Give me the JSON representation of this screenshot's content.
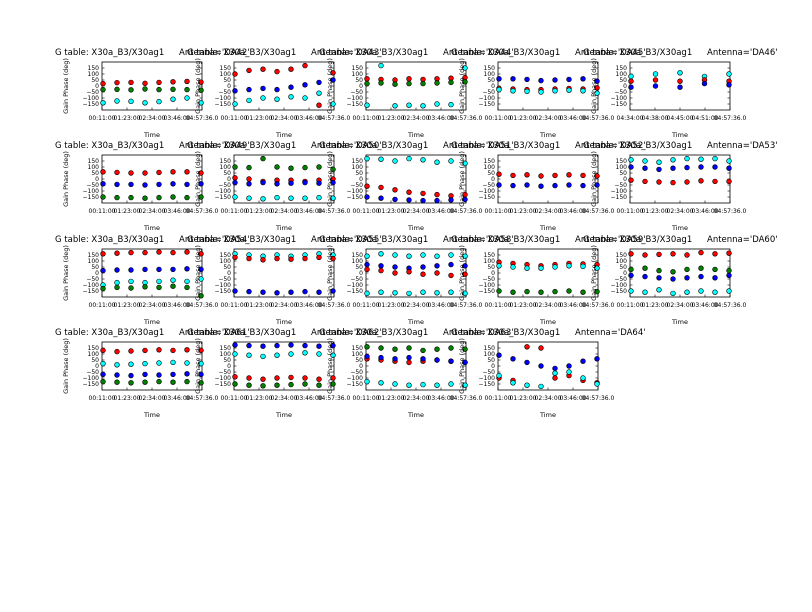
{
  "chart_data": {
    "type": "scatter",
    "ylabel": "Gain Phase (deg)",
    "xlabel": "Time",
    "title_prefix": "G table: X30a_B3/X30ag1",
    "ylim": [
      -200,
      200
    ],
    "yticks": [
      "150",
      "100",
      "50",
      "0",
      "−50",
      "−100",
      "−150"
    ],
    "xticks": [
      "00:11:00",
      "01:23:00",
      "02:34:00",
      "03:46:00",
      "04:57:36.0"
    ],
    "xticks_alt": [
      "04:34:00",
      "04:38:00",
      "04:45:00",
      "04:51:00",
      "04:57:36.0"
    ],
    "series_colors": {
      "red": "#ff0000",
      "blue": "#0000ff",
      "green": "#008000",
      "cyan": "#00ffff"
    },
    "panels": [
      {
        "antenna": "Antenna='DA42'",
        "series": [
          {
            "color": "red",
            "y": [
              20,
              28,
              30,
              22,
              30,
              35,
              38,
              32
            ]
          },
          {
            "color": "green",
            "y": [
              -30,
              -28,
              -32,
              -25,
              -30,
              -28,
              -30,
              -35
            ]
          },
          {
            "color": "cyan",
            "y": [
              -140,
              -125,
              -128,
              -140,
              -130,
              -110,
              -100,
              -140
            ]
          }
        ]
      },
      {
        "antenna": "Antenna='DA43'",
        "series": [
          {
            "color": "red",
            "y": [
              100,
              130,
              140,
              120,
              140,
              170,
              -160,
              110
            ]
          },
          {
            "color": "blue",
            "y": [
              -40,
              -30,
              -20,
              -30,
              -10,
              10,
              30,
              50
            ]
          },
          {
            "color": "cyan",
            "y": [
              -150,
              -120,
              -100,
              -110,
              -90,
              -100,
              -60,
              -150
            ]
          }
        ]
      },
      {
        "antenna": "Antenna='DA44'",
        "series": [
          {
            "color": "red",
            "y": [
              60,
              55,
              50,
              60,
              55,
              60,
              65,
              70
            ]
          },
          {
            "color": "green",
            "y": [
              20,
              25,
              15,
              20,
              20,
              25,
              30,
              35
            ]
          },
          {
            "color": "cyan",
            "y": [
              -160,
              170,
              -165,
              -160,
              -165,
              -150,
              -155,
              150
            ]
          }
        ]
      },
      {
        "antenna": "Antenna='DA45'",
        "series": [
          {
            "color": "blue",
            "y": [
              60,
              60,
              55,
              45,
              50,
              55,
              60,
              40
            ]
          },
          {
            "color": "red",
            "y": [
              -20,
              -25,
              -30,
              -30,
              -25,
              -20,
              -25,
              -15
            ]
          },
          {
            "color": "cyan",
            "y": [
              -30,
              -40,
              -45,
              -50,
              -40,
              -35,
              -40,
              -60
            ]
          }
        ]
      },
      {
        "antenna": "Antenna='DA46'",
        "series": [
          {
            "color": "cyan",
            "y": [
              80,
              100,
              110,
              80,
              100
            ]
          },
          {
            "color": "red",
            "y": [
              40,
              50,
              40,
              50,
              40
            ]
          },
          {
            "color": "blue",
            "y": [
              -10,
              0,
              -10,
              20,
              10
            ]
          }
        ]
      },
      {
        "antenna": "Antenna='DA49'",
        "series": [
          {
            "color": "red",
            "y": [
              60,
              55,
              50,
              50,
              55,
              60,
              60,
              50
            ]
          },
          {
            "color": "blue",
            "y": [
              -40,
              -45,
              -45,
              -50,
              -45,
              -40,
              -45,
              -40
            ]
          },
          {
            "color": "green",
            "y": [
              -150,
              -155,
              -155,
              -160,
              -155,
              -150,
              -155,
              -150
            ]
          }
        ]
      },
      {
        "antenna": "Antenna='DA50'",
        "series": [
          {
            "color": "green",
            "y": [
              100,
              95,
              170,
              100,
              90,
              95,
              100,
              80
            ]
          },
          {
            "color": "red",
            "y": [
              10,
              0,
              -20,
              -10,
              -10,
              -20,
              -10,
              0
            ]
          },
          {
            "color": "blue",
            "y": [
              -30,
              -40,
              -30,
              -40,
              -35,
              -30,
              -35,
              -30
            ]
          },
          {
            "color": "cyan",
            "y": [
              -150,
              -160,
              -165,
              -155,
              -160,
              -160,
              -155,
              -160
            ]
          }
        ]
      },
      {
        "antenna": "Antenna='DA51'",
        "series": [
          {
            "color": "cyan",
            "y": [
              170,
              165,
              150,
              170,
              160,
              140,
              150,
              130
            ]
          },
          {
            "color": "red",
            "y": [
              -60,
              -70,
              -90,
              -110,
              -120,
              -130,
              -140,
              -130
            ]
          },
          {
            "color": "blue",
            "y": [
              -150,
              -160,
              -170,
              -175,
              -180,
              -180,
              -175,
              -170
            ]
          }
        ]
      },
      {
        "antenna": "Antenna='DA52'",
        "series": [
          {
            "color": "red",
            "y": [
              40,
              30,
              35,
              25,
              30,
              35,
              30,
              25
            ]
          },
          {
            "color": "blue",
            "y": [
              -50,
              -55,
              -50,
              -60,
              -55,
              -50,
              -55,
              -50
            ]
          }
        ]
      },
      {
        "antenna": "Antenna='DA53'",
        "series": [
          {
            "color": "cyan",
            "y": [
              160,
              150,
              140,
              160,
              170,
              165,
              170,
              150
            ]
          },
          {
            "color": "blue",
            "y": [
              100,
              90,
              80,
              90,
              95,
              100,
              100,
              90
            ]
          },
          {
            "color": "red",
            "y": [
              -10,
              -20,
              -25,
              -30,
              -25,
              -15,
              -20,
              -20
            ]
          }
        ]
      },
      {
        "antenna": "Antenna='DA54'",
        "series": [
          {
            "color": "red",
            "y": [
              160,
              165,
              170,
              170,
              175,
              170,
              175,
              160
            ]
          },
          {
            "color": "blue",
            "y": [
              20,
              25,
              25,
              30,
              30,
              30,
              35,
              30
            ]
          },
          {
            "color": "cyan",
            "y": [
              -100,
              -80,
              -70,
              -80,
              -70,
              -60,
              -70,
              -50
            ]
          },
          {
            "color": "green",
            "y": [
              -130,
              -120,
              -125,
              -115,
              -120,
              -110,
              -120,
              -190
            ]
          }
        ]
      },
      {
        "antenna": "Antenna='DA55'",
        "series": [
          {
            "color": "cyan",
            "y": [
              160,
              150,
              140,
              150,
              140,
              150,
              160,
              150
            ]
          },
          {
            "color": "red",
            "y": [
              130,
              120,
              110,
              120,
              115,
              120,
              130,
              120
            ]
          },
          {
            "color": "blue",
            "y": [
              -150,
              -155,
              -160,
              -165,
              -160,
              -155,
              -160,
              -150
            ]
          }
        ]
      },
      {
        "antenna": "Antenna='DA58'",
        "series": [
          {
            "color": "cyan",
            "y": [
              140,
              160,
              150,
              140,
              150,
              140,
              150,
              140
            ]
          },
          {
            "color": "blue",
            "y": [
              70,
              60,
              50,
              40,
              50,
              60,
              70,
              60
            ]
          },
          {
            "color": "red",
            "y": [
              30,
              20,
              0,
              10,
              -10,
              0,
              -20,
              -10
            ]
          },
          {
            "color": "cyan",
            "y": [
              -170,
              -160,
              -165,
              -170,
              -160,
              -165,
              -160,
              -170
            ]
          }
        ]
      },
      {
        "antenna": "Antenna='DA59'",
        "series": [
          {
            "color": "red",
            "y": [
              90,
              80,
              70,
              60,
              70,
              80,
              75,
              70
            ]
          },
          {
            "color": "cyan",
            "y": [
              60,
              50,
              40,
              40,
              50,
              60,
              55,
              40
            ]
          },
          {
            "color": "green",
            "y": [
              -150,
              -160,
              -155,
              -160,
              -155,
              -150,
              -160,
              -155
            ]
          }
        ]
      },
      {
        "antenna": "Antenna='DA60'",
        "series": [
          {
            "color": "red",
            "y": [
              160,
              150,
              155,
              160,
              150,
              170,
              160,
              165
            ]
          },
          {
            "color": "blue",
            "y": [
              -20,
              -30,
              -40,
              -50,
              -40,
              -30,
              -40,
              -20
            ]
          },
          {
            "color": "green",
            "y": [
              30,
              40,
              20,
              10,
              30,
              40,
              30,
              20
            ]
          },
          {
            "color": "cyan",
            "y": [
              -150,
              -160,
              -140,
              -170,
              -160,
              -150,
              -160,
              -150
            ]
          }
        ]
      },
      {
        "antenna": "Antenna='DA61'",
        "series": [
          {
            "color": "red",
            "y": [
              130,
              120,
              125,
              130,
              135,
              130,
              135,
              130
            ]
          },
          {
            "color": "cyan",
            "y": [
              20,
              10,
              15,
              20,
              25,
              30,
              25,
              20
            ]
          },
          {
            "color": "blue",
            "y": [
              -70,
              -75,
              -80,
              -70,
              -75,
              -70,
              -65,
              -70
            ]
          },
          {
            "color": "green",
            "y": [
              -130,
              -135,
              -140,
              -135,
              -130,
              -135,
              -130,
              -140
            ]
          }
        ]
      },
      {
        "antenna": "Antenna='DA62'",
        "series": [
          {
            "color": "blue",
            "y": [
              175,
              170,
              165,
              170,
              175,
              170,
              165,
              170
            ]
          },
          {
            "color": "cyan",
            "y": [
              100,
              90,
              80,
              90,
              100,
              110,
              100,
              90
            ]
          },
          {
            "color": "red",
            "y": [
              -90,
              -100,
              -110,
              -100,
              -95,
              -100,
              -110,
              -100
            ]
          },
          {
            "color": "green",
            "y": [
              -150,
              -160,
              -165,
              -160,
              -155,
              -150,
              -160,
              -150
            ]
          }
        ]
      },
      {
        "antenna": "Antenna='DA63'",
        "series": [
          {
            "color": "green",
            "y": [
              160,
              150,
              140,
              150,
              130,
              140,
              150,
              140
            ]
          },
          {
            "color": "red",
            "y": [
              60,
              50,
              40,
              30,
              40,
              50,
              40,
              30
            ]
          },
          {
            "color": "blue",
            "y": [
              80,
              70,
              60,
              70,
              60,
              50,
              40,
              30
            ]
          },
          {
            "color": "cyan",
            "y": [
              -130,
              -140,
              -150,
              -160,
              -155,
              -160,
              -150,
              -160
            ]
          }
        ]
      },
      {
        "antenna": "Antenna='DA64'",
        "series": [
          {
            "color": "blue",
            "y": [
              90,
              60,
              30,
              0,
              -20,
              0,
              40,
              60
            ]
          },
          {
            "color": "red",
            "y": [
              -100,
              -120,
              160,
              150,
              -100,
              -80,
              -120,
              -140
            ]
          },
          {
            "color": "cyan",
            "y": [
              -80,
              -140,
              -160,
              -170,
              -60,
              -50,
              -100,
              -150
            ]
          }
        ]
      }
    ]
  }
}
